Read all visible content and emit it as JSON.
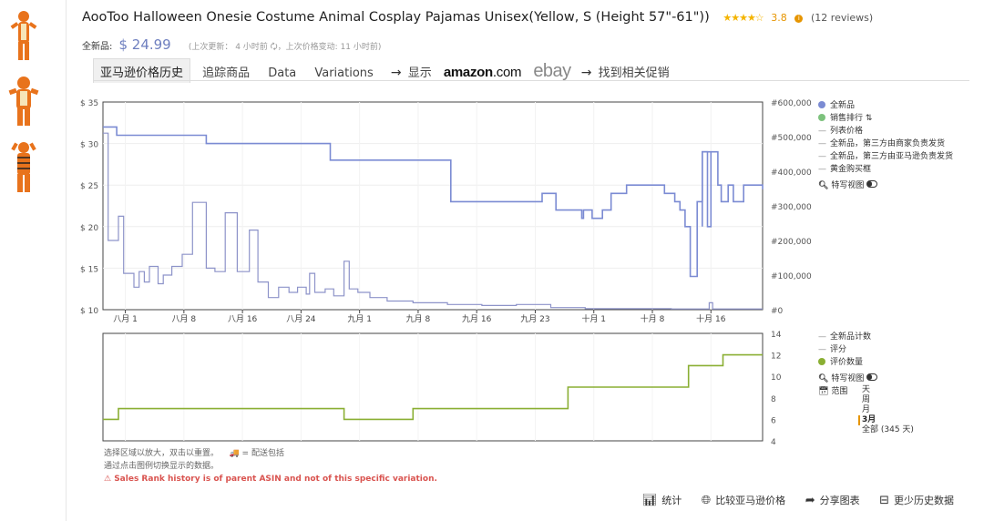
{
  "product": {
    "title": "AooToo Halloween Onesie Costume Animal Cosplay Pajamas Unisex(Yellow, S (Height 57\"-61\"))",
    "stars": "★★★★☆",
    "rating": "3.8",
    "reviews": "(12 reviews)",
    "price_label": "全新品:",
    "price": "$ 24.99",
    "meta": "(上次更新： 4 小时前 🗘，上次价格变动: 11 小时前)"
  },
  "tabs": [
    {
      "label": "亚马逊价格历史",
      "active": true
    },
    {
      "label": "追踪商品"
    },
    {
      "label": "Data"
    },
    {
      "label": "Variations"
    }
  ],
  "links": {
    "arrow": "→",
    "show": "显示",
    "amazon_a": "amazon",
    "amazon_b": ".com",
    "ebay": "ebay",
    "deals": "找到相关促销"
  },
  "legend_main": {
    "items": [
      {
        "label": "全新品",
        "color": "#7b8bd3",
        "kind": "dot"
      },
      {
        "label": "销售排行 ⇅",
        "color": "#7dc27d",
        "kind": "dot"
      },
      {
        "label": "列表价格",
        "kind": "dash"
      },
      {
        "label": "全新品，第三方由商家负责发货",
        "kind": "dash"
      },
      {
        "label": "全新品，第三方由亚马逊负责发货",
        "kind": "dash"
      },
      {
        "label": "黄金购买框",
        "kind": "dash"
      }
    ],
    "closeup": "特写视图"
  },
  "legend_lower": {
    "items": [
      {
        "label": "全新品计数",
        "kind": "dash"
      },
      {
        "label": "评分",
        "kind": "dash"
      },
      {
        "label": "评价数量",
        "color": "#8aaf33",
        "kind": "dot"
      }
    ],
    "closeup": "特写视图",
    "range_label": "范围",
    "ranges": [
      "天",
      "周",
      "月",
      "3月",
      "全部 (345 天)"
    ],
    "range_selected": "3月"
  },
  "notes": {
    "line1a": "选择区域以放大，双击以重置。",
    "line1b": "🚚 = 配送包括",
    "line2": "通过点击图例切换显示的数据。",
    "warning": "⚠ Sales Rank history is of parent ASIN and not of this specific variation."
  },
  "actions": [
    {
      "icon": "bar-chart-icon",
      "label": "统计"
    },
    {
      "icon": "globe-icon",
      "label": "比较亚马逊价格"
    },
    {
      "icon": "share-icon",
      "label": "分享图表"
    },
    {
      "icon": "collapse-icon",
      "label": "更少历史数据"
    }
  ],
  "chart_data": [
    {
      "type": "line",
      "x_ticks": [
        "八月 1",
        "八月 8",
        "八月 16",
        "八月 24",
        "九月 1",
        "九月 8",
        "九月 16",
        "九月 23",
        "十月 1",
        "十月 8",
        "十月 16"
      ],
      "y_ticks_left": [
        "$ 35",
        "$ 30",
        "$ 25",
        "$ 20",
        "$ 15",
        "$ 10"
      ],
      "y_ticks_right": [
        "#600,000",
        "#500,000",
        "#400,000",
        "#300,000",
        "#200,000",
        "#100,000",
        "#0"
      ],
      "ylim_left": [
        10,
        35
      ],
      "ylim_right": [
        0,
        600000
      ],
      "series": [
        {
          "name": "全新品",
          "color": "#7b8bd3",
          "step_points": [
            [
              0,
              32
            ],
            [
              0.8,
              32
            ],
            [
              0.8,
              31
            ],
            [
              6,
              31
            ],
            [
              6,
              30
            ],
            [
              13.2,
              30
            ],
            [
              13.2,
              28
            ],
            [
              20.2,
              28
            ],
            [
              20.2,
              23
            ],
            [
              25.5,
              23
            ],
            [
              25.5,
              24
            ],
            [
              26.3,
              24
            ],
            [
              26.3,
              22
            ],
            [
              27.8,
              22
            ],
            [
              27.8,
              21
            ],
            [
              27.9,
              21
            ],
            [
              27.9,
              22
            ],
            [
              28.4,
              22
            ],
            [
              28.4,
              21
            ],
            [
              29,
              21
            ],
            [
              29,
              22
            ],
            [
              29.5,
              22
            ],
            [
              29.5,
              24
            ],
            [
              30.4,
              24
            ],
            [
              30.4,
              25
            ],
            [
              32.6,
              25
            ],
            [
              32.6,
              24
            ],
            [
              33.2,
              24
            ],
            [
              33.2,
              23
            ],
            [
              33.5,
              23
            ],
            [
              33.5,
              22
            ],
            [
              33.8,
              22
            ],
            [
              33.8,
              20
            ],
            [
              34.1,
              20
            ],
            [
              34.1,
              14
            ],
            [
              34.5,
              14
            ],
            [
              34.5,
              23
            ],
            [
              34.8,
              23
            ],
            [
              34.8,
              29
            ],
            [
              35.7,
              29
            ],
            [
              35.7,
              25
            ],
            [
              35.9,
              25
            ],
            [
              35.9,
              23
            ],
            [
              36.3,
              23
            ],
            [
              36.3,
              25
            ],
            [
              36.6,
              25
            ],
            [
              36.6,
              23
            ],
            [
              37.2,
              23
            ],
            [
              37.2,
              25
            ],
            [
              38.3,
              25
            ],
            [
              38.3,
              24.5
            ]
          ],
          "extra_steps": [
            [
              34.8,
              20
            ],
            [
              34.8,
              29
            ],
            [
              35.1,
              29
            ],
            [
              35.1,
              20
            ],
            [
              35.3,
              20
            ],
            [
              35.3,
              29
            ]
          ]
        },
        {
          "name": "销售排行",
          "color": "#8d93c9",
          "step_points": [
            [
              0,
              510000
            ],
            [
              0.3,
              510000
            ],
            [
              0.3,
              200000
            ],
            [
              0.9,
              200000
            ],
            [
              0.9,
              270000
            ],
            [
              1.2,
              270000
            ],
            [
              1.2,
              105000
            ],
            [
              1.8,
              105000
            ],
            [
              1.8,
              65000
            ],
            [
              2.1,
              65000
            ],
            [
              2.1,
              110000
            ],
            [
              2.4,
              110000
            ],
            [
              2.4,
              80000
            ],
            [
              2.7,
              80000
            ],
            [
              2.7,
              125000
            ],
            [
              3.2,
              125000
            ],
            [
              3.2,
              75000
            ],
            [
              3.5,
              75000
            ],
            [
              3.5,
              100000
            ],
            [
              4,
              100000
            ],
            [
              4,
              125000
            ],
            [
              4.6,
              125000
            ],
            [
              4.6,
              160000
            ],
            [
              5.2,
              160000
            ],
            [
              5.2,
              310000
            ],
            [
              6,
              310000
            ],
            [
              6,
              120000
            ],
            [
              6.5,
              120000
            ],
            [
              6.5,
              110000
            ],
            [
              7.1,
              110000
            ],
            [
              7.1,
              280000
            ],
            [
              7.8,
              280000
            ],
            [
              7.8,
              110000
            ],
            [
              8.5,
              110000
            ],
            [
              8.5,
              230000
            ],
            [
              9,
              230000
            ],
            [
              9,
              80000
            ],
            [
              9.6,
              80000
            ],
            [
              9.6,
              35000
            ],
            [
              10.2,
              35000
            ],
            [
              10.2,
              65000
            ],
            [
              10.8,
              65000
            ],
            [
              10.8,
              50000
            ],
            [
              11.3,
              50000
            ],
            [
              11.3,
              65000
            ],
            [
              11.8,
              65000
            ],
            [
              11.8,
              45000
            ],
            [
              12,
              45000
            ],
            [
              12,
              105000
            ],
            [
              12.3,
              105000
            ],
            [
              12.3,
              50000
            ],
            [
              12.9,
              50000
            ],
            [
              12.9,
              60000
            ],
            [
              13.4,
              60000
            ],
            [
              13.4,
              40000
            ],
            [
              14,
              40000
            ],
            [
              14,
              140000
            ],
            [
              14.3,
              140000
            ],
            [
              14.3,
              60000
            ],
            [
              14.8,
              60000
            ],
            [
              14.8,
              50000
            ],
            [
              15.5,
              50000
            ],
            [
              15.5,
              35000
            ],
            [
              16.5,
              35000
            ],
            [
              16.5,
              25000
            ],
            [
              18,
              25000
            ],
            [
              18,
              20000
            ],
            [
              20,
              20000
            ],
            [
              20,
              15000
            ],
            [
              22,
              15000
            ],
            [
              22,
              12000
            ],
            [
              24,
              12000
            ],
            [
              24,
              15000
            ],
            [
              26,
              15000
            ],
            [
              26,
              6000
            ],
            [
              28,
              6000
            ],
            [
              28,
              3000
            ],
            [
              33,
              3000
            ],
            [
              33,
              2000
            ],
            [
              35.2,
              2000
            ],
            [
              35.2,
              20000
            ],
            [
              35.4,
              20000
            ],
            [
              35.4,
              2000
            ],
            [
              38.3,
              2000
            ]
          ]
        }
      ]
    },
    {
      "type": "line",
      "y_ticks": [
        "14",
        "12",
        "10",
        "8",
        "6",
        "4"
      ],
      "ylim": [
        4,
        14
      ],
      "series": [
        {
          "name": "评价数量",
          "color": "#8aaf33",
          "step_points": [
            [
              0,
              6
            ],
            [
              0.9,
              6
            ],
            [
              0.9,
              7
            ],
            [
              14,
              7
            ],
            [
              14,
              6
            ],
            [
              18,
              6
            ],
            [
              18,
              7
            ],
            [
              27,
              7
            ],
            [
              27,
              9
            ],
            [
              34,
              9
            ],
            [
              34,
              11
            ],
            [
              36,
              11
            ],
            [
              36,
              12
            ],
            [
              38.3,
              12
            ]
          ]
        }
      ]
    }
  ]
}
